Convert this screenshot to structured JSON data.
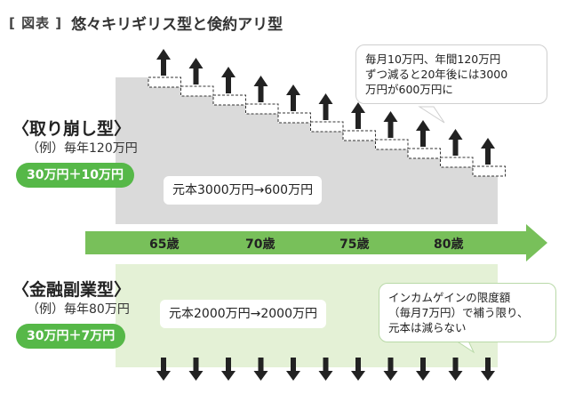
{
  "figure_label": "[ 図表 ]",
  "title": "悠々キリギリス型と倹約アリ型",
  "withdrawal": {
    "heading": "〈取り崩し型〉",
    "example": "（例）毎年120万円",
    "pill": "30万円＋10万円",
    "principal": "元本3000万円→600万円",
    "note": "毎月10万円、年間120万円\nずつ減ると20年後には3000\n万円が600万円に"
  },
  "timeline": {
    "ages": [
      "65歳",
      "70歳",
      "75歳",
      "80歳"
    ]
  },
  "side_business": {
    "heading": "〈金融副業型〉",
    "example": "（例）毎年80万円",
    "pill": "30万円＋7万円",
    "principal": "元本2000万円→2000万円",
    "note": "インカムゲインの限度額\n（毎月7万円）で補う限り、\n元本は減らない"
  },
  "colors": {
    "green": "#56b848",
    "arrow_green": "#78c05a",
    "light_green": "#e4f1d6",
    "gray_block": "#dadada",
    "dark_arrow": "#222222"
  },
  "icons": {
    "up_arrows": "arrow-up-icon",
    "down_arrows": "arrow-down-icon"
  }
}
